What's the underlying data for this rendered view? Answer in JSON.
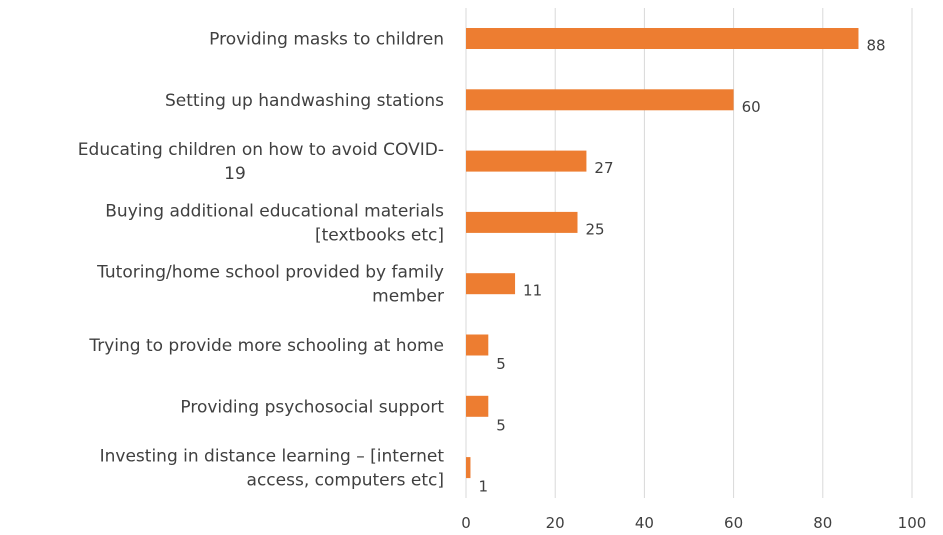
{
  "chart_data": {
    "type": "bar",
    "orientation": "horizontal",
    "categories": [
      "Providing masks to children",
      "Setting up handwashing stations",
      "Educating children on how to avoid COVID-19",
      "Buying additional educational materials [textbooks etc]",
      "Tutoring/home school provided by family member",
      "Trying to provide more schooling at home",
      "Providing psychosocial support",
      "Investing in distance learning – [internet access, computers etc]"
    ],
    "category_lines": [
      [
        "Providing masks to children"
      ],
      [
        "Setting up handwashing stations"
      ],
      [
        "Educating children on how to avoid COVID-",
        "19"
      ],
      [
        "Buying additional educational materials",
        "[textbooks etc]"
      ],
      [
        "Tutoring/home school provided by family",
        "member"
      ],
      [
        "Trying to provide more schooling at home"
      ],
      [
        "Providing psychosocial support"
      ],
      [
        "Investing in distance learning – [internet",
        "access, computers etc]"
      ]
    ],
    "values": [
      88,
      60,
      27,
      25,
      11,
      5,
      5,
      1
    ],
    "data_labels": [
      "88",
      "60",
      "27",
      "25",
      "11",
      "5",
      "5",
      "1"
    ],
    "xlim": [
      0,
      100
    ],
    "xticks": [
      "0",
      "20",
      "40",
      "60",
      "80",
      "100"
    ],
    "title": "",
    "xlabel": "",
    "ylabel": "",
    "grid": "vertical",
    "legend": "none",
    "bar_color": "#ED7D31"
  }
}
